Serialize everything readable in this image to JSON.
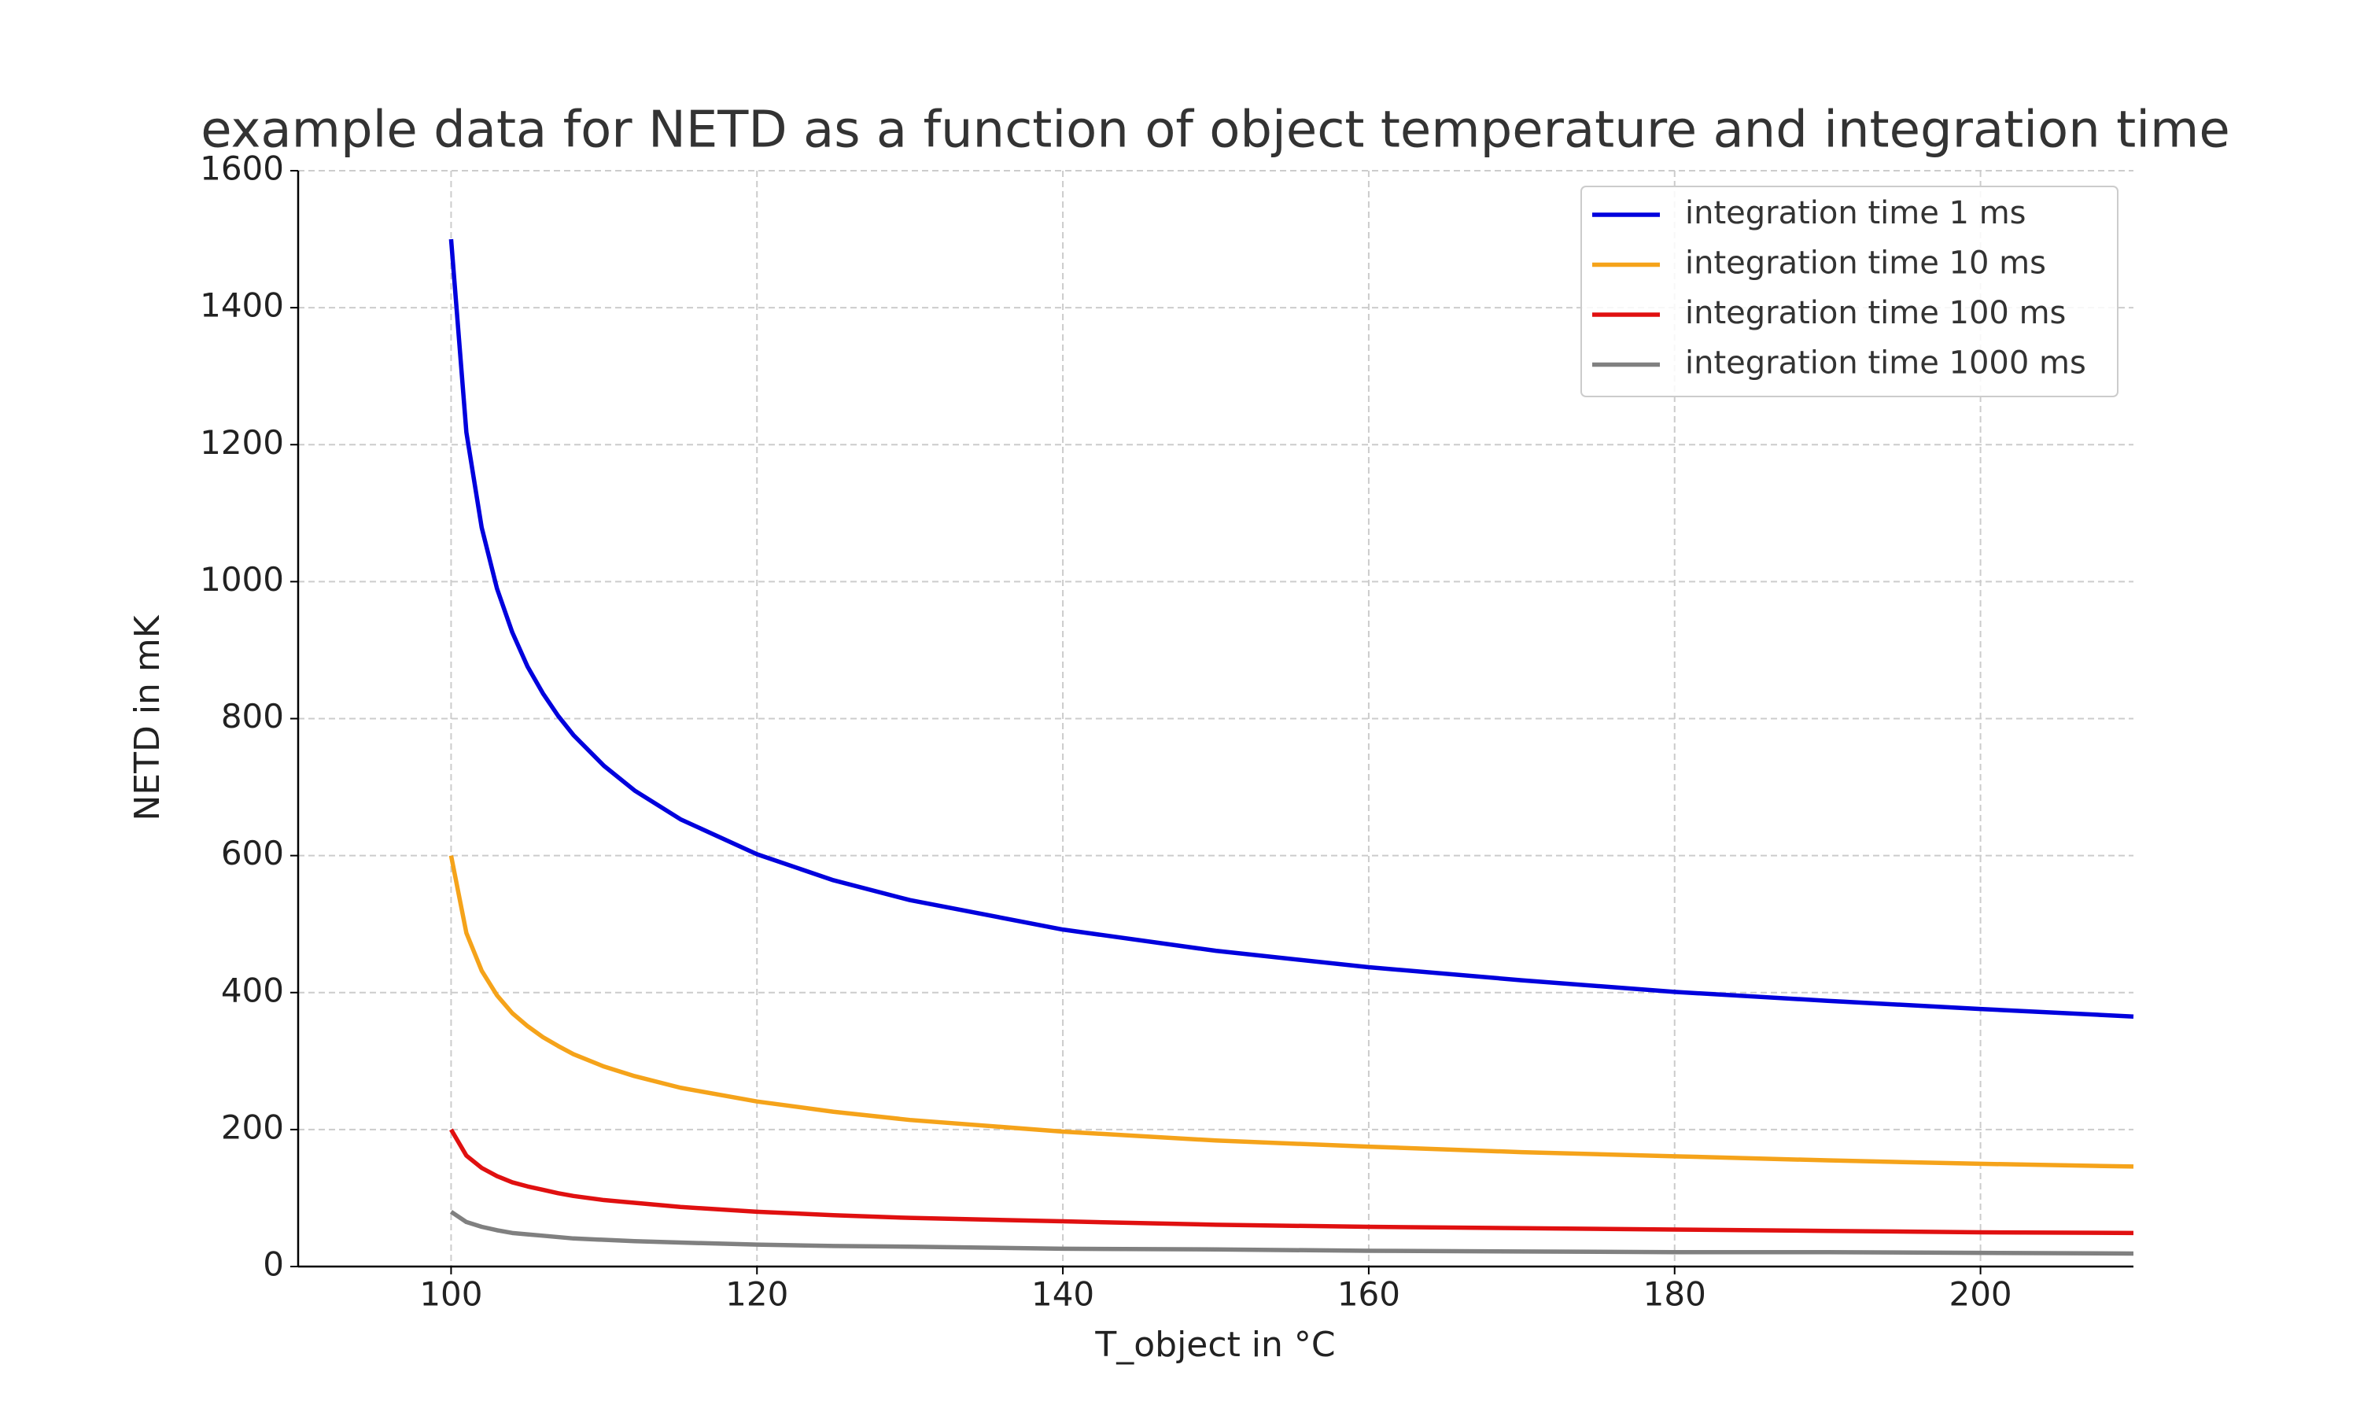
{
  "chart_data": {
    "type": "line",
    "title": "example data for NETD as a function of object temperature and integration time",
    "x_label": "T_object in °C",
    "y_label": "NETD in mK",
    "x": [
      100,
      101,
      102,
      103,
      104,
      105,
      106,
      107,
      108,
      110,
      112,
      115,
      120,
      125,
      130,
      140,
      150,
      160,
      170,
      180,
      190,
      200,
      210
    ],
    "series": [
      {
        "name": "integration time 1 ms",
        "color": "#0000dd",
        "values": [
          1500,
          1218,
          1079,
          990,
          926,
          876,
          837,
          804,
          776,
          731,
          695,
          653,
          602,
          564,
          535,
          492,
          461,
          437,
          418,
          401,
          388,
          376,
          365
        ]
      },
      {
        "name": "integration time 10 ms",
        "color": "#f5a31a",
        "values": [
          600,
          487,
          432,
          396,
          370,
          351,
          335,
          322,
          310,
          292,
          278,
          261,
          241,
          226,
          214,
          197,
          184,
          175,
          167,
          161,
          155,
          150,
          146
        ]
      },
      {
        "name": "integration time 100 ms",
        "color": "#e01010",
        "values": [
          200,
          162,
          144,
          132,
          123,
          117,
          112,
          107,
          103,
          97,
          93,
          87,
          80,
          75,
          71,
          66,
          61,
          58,
          56,
          54,
          52,
          50,
          49
        ]
      },
      {
        "name": "integration time 1000 ms",
        "color": "#808080",
        "values": [
          80,
          65,
          58,
          53,
          49,
          47,
          45,
          43,
          41,
          39,
          37,
          35,
          32,
          30,
          29,
          26,
          25,
          23,
          22,
          21,
          21,
          20,
          19
        ]
      }
    ],
    "xlim": [
      90,
      210
    ],
    "xticks": [
      100,
      120,
      140,
      160,
      180,
      200
    ],
    "ylim": [
      0,
      1600
    ],
    "yticks": [
      0,
      200,
      400,
      600,
      800,
      1000,
      1200,
      1400,
      1600
    ],
    "grid": true,
    "legend": "upper right"
  }
}
